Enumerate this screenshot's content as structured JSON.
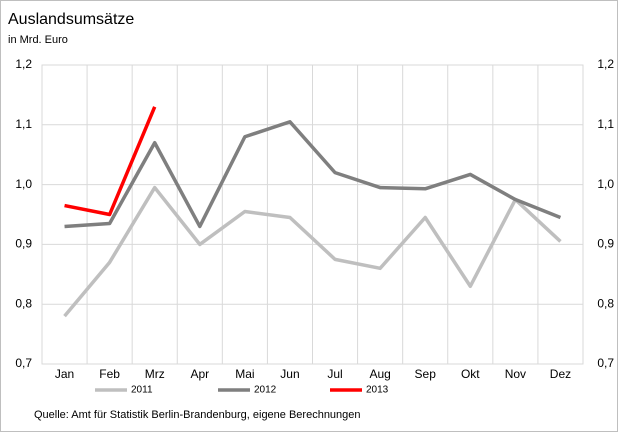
{
  "chart_data": {
    "type": "line",
    "title": "Auslandsumsätze",
    "subtitle": "in Mrd. Euro",
    "source": "Quelle: Amt für Statistik Berlin-Brandenburg, eigene Berechnungen",
    "categories": [
      "Jan",
      "Feb",
      "Mrz",
      "Apr",
      "Mai",
      "Jun",
      "Jul",
      "Aug",
      "Sep",
      "Okt",
      "Nov",
      "Dez"
    ],
    "series": [
      {
        "name": "2011",
        "color": "#bfbfbf",
        "values": [
          0.78,
          0.87,
          0.995,
          0.9,
          0.955,
          0.945,
          0.875,
          0.86,
          0.945,
          0.83,
          0.975,
          0.905
        ]
      },
      {
        "name": "2012",
        "color": "#7f7f7f",
        "values": [
          0.93,
          0.935,
          1.07,
          0.93,
          1.08,
          1.105,
          1.02,
          0.995,
          0.993,
          1.017,
          0.975,
          0.945
        ]
      },
      {
        "name": "2013",
        "color": "#ff0000",
        "values": [
          0.965,
          0.95,
          1.13,
          null,
          null,
          null,
          null,
          null,
          null,
          null,
          null,
          null
        ]
      }
    ],
    "ylim": [
      0.7,
      1.2
    ],
    "yticks": [
      {
        "value": 0.7,
        "label": "0,7"
      },
      {
        "value": 0.8,
        "label": "0,8"
      },
      {
        "value": 0.9,
        "label": "0,9"
      },
      {
        "value": 1.0,
        "label": "1,0"
      },
      {
        "value": 1.1,
        "label": "1,1"
      },
      {
        "value": 1.2,
        "label": "1,2"
      }
    ],
    "y2lim": [
      0.7,
      1.2
    ],
    "y2ticks": [
      {
        "value": 0.7,
        "label": "0,7"
      },
      {
        "value": 0.8,
        "label": "0,8"
      },
      {
        "value": 0.9,
        "label": "0,9"
      },
      {
        "value": 1.0,
        "label": "1,0"
      },
      {
        "value": 1.1,
        "label": "1,1"
      },
      {
        "value": 1.2,
        "label": "1,2"
      }
    ],
    "grid": true,
    "legend": "bottom"
  }
}
